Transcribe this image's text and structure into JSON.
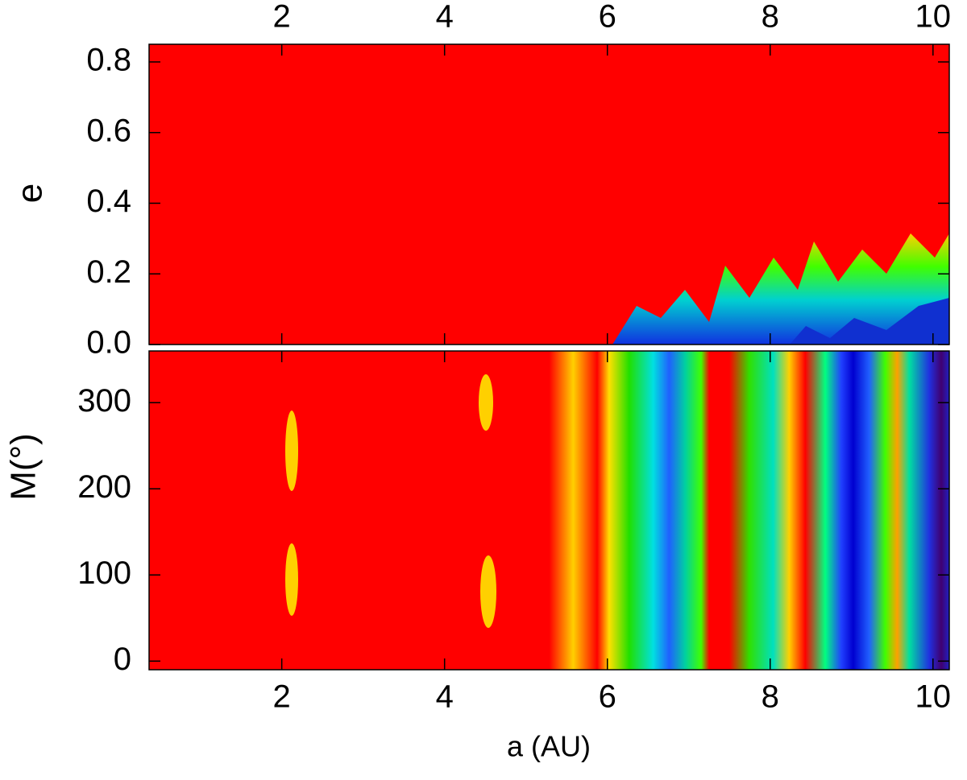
{
  "chart_data": [
    {
      "type": "heatmap",
      "ylabel": "e",
      "xlim": [
        0.37,
        10.2
      ],
      "xticks": [
        2,
        4,
        6,
        8,
        10
      ],
      "xticks_position": "top",
      "ylim": [
        0,
        0.85
      ],
      "yticks": [
        {
          "value": 0,
          "label": "0.0"
        },
        0.2,
        0.4,
        0.6,
        0.8
      ]
    },
    {
      "type": "heatmap",
      "ylabel": "M(°)",
      "xlabel": "a (AU)",
      "xlim": [
        0.37,
        10.2
      ],
      "xticks": [
        2,
        4,
        6,
        8,
        10
      ],
      "xticks_position": "bottom",
      "ylim": [
        -10,
        360
      ],
      "yticks": [
        0,
        100,
        200,
        300
      ]
    }
  ]
}
